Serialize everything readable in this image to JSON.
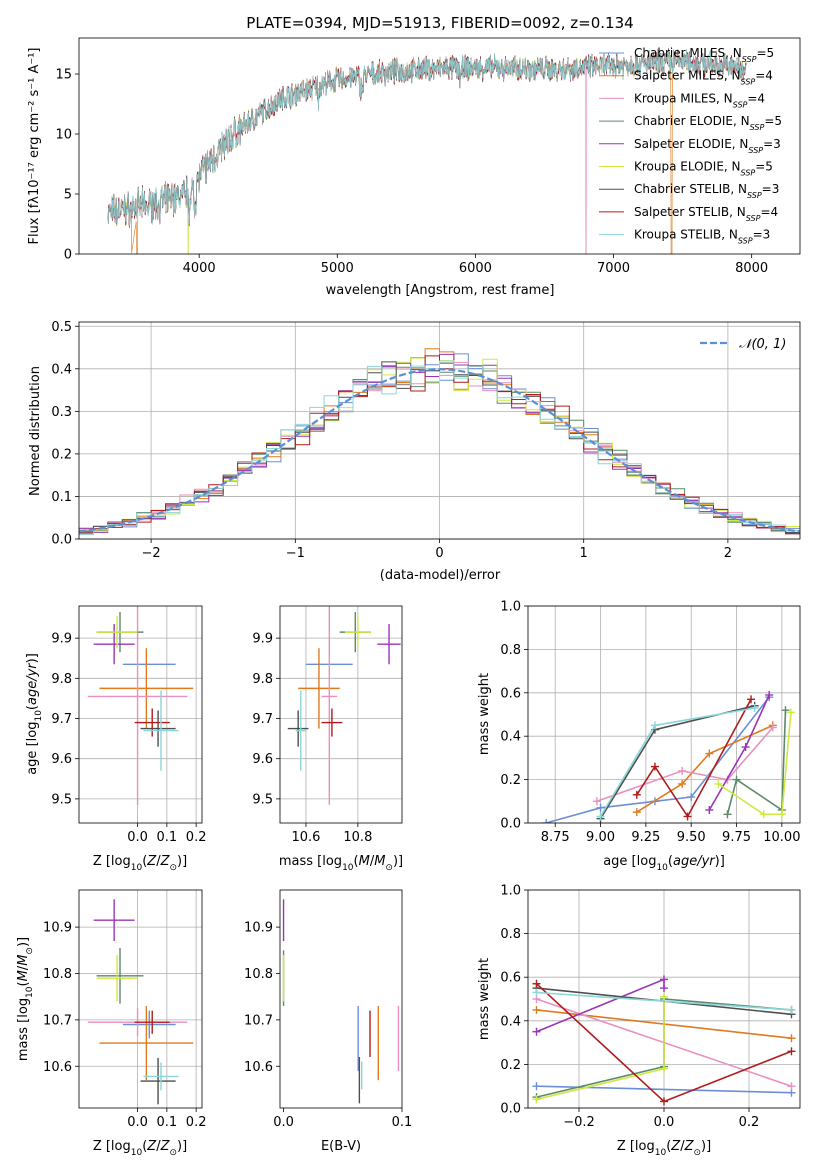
{
  "colors": {
    "Chabrier MILES": "#6b8fd6",
    "Salpeter MILES": "#df7a1e",
    "Kroupa MILES": "#ea8fbf",
    "Chabrier ELODIE": "#5b8a6a",
    "Salpeter ELODIE": "#9b35b5",
    "Kroupa ELODIE": "#cfe843",
    "Chabrier STELIB": "#4f4f4f",
    "Salpeter STELIB": "#b01c1c",
    "Kroupa STELIB": "#8ad6d9"
  },
  "chart_data": [
    {
      "id": "spectrum",
      "type": "line",
      "title": "PLATE=0394, MJD=51913, FIBERID=0092, z=0.134",
      "xlabel": "wavelength [Angstrom, rest frame]",
      "ylabel": "Flux [fλ10⁻¹⁷ erg cm⁻² s⁻¹ A⁻¹]",
      "xlim": [
        3130,
        8350
      ],
      "ylim": [
        0,
        18
      ],
      "xticks": [
        4000,
        5000,
        6000,
        7000,
        8000
      ],
      "yticks": [
        0,
        5,
        10,
        15
      ],
      "grid": false,
      "legend_position": "top-right",
      "legend": [
        "Chabrier MILES, N_SSP=5",
        "Salpeter MILES, N_SSP=4",
        "Kroupa MILES, N_SSP=4",
        "Chabrier ELODIE, N_SSP=5",
        "Salpeter ELODIE, N_SSP=3",
        "Kroupa ELODIE, N_SSP=5",
        "Chabrier STELIB, N_SSP=3",
        "Salpeter STELIB, N_SSP=4",
        "Kroupa STELIB, N_SSP=3"
      ],
      "continuum_anchors": {
        "x": [
          3350,
          3500,
          3700,
          3900,
          4100,
          4300,
          4600,
          5000,
          5400,
          5800,
          6200,
          6600,
          7000,
          7500,
          7950
        ],
        "y": [
          3.5,
          3.8,
          4.2,
          5.0,
          8.0,
          10.5,
          13.0,
          14.5,
          15.2,
          15.5,
          15.5,
          15.4,
          15.7,
          16.1,
          15.5
        ]
      },
      "dropouts": [
        {
          "series": "Salpeter MILES",
          "x": 3550
        },
        {
          "series": "Kroupa ELODIE",
          "x": 3920
        },
        {
          "series": "Kroupa MILES",
          "x": 6800
        },
        {
          "series": "Salpeter MILES",
          "x": 7420
        }
      ]
    },
    {
      "id": "residuals",
      "type": "histogram",
      "xlabel": "(data-model)/error",
      "ylabel": "Normed distribution",
      "xlim": [
        -2.5,
        2.5
      ],
      "ylim": [
        0,
        0.51
      ],
      "xticks": [
        -2,
        -1,
        0,
        1,
        2
      ],
      "yticks": [
        0.0,
        0.1,
        0.2,
        0.3,
        0.4,
        0.5
      ],
      "grid": true,
      "legend_position": "top-right",
      "reference_curve": {
        "name": "𝒩(0, 1)",
        "mean": 0,
        "sigma": 1,
        "color": "#5b8fd6"
      },
      "bin_width": 0.1
    },
    {
      "id": "z-age",
      "type": "errorbar",
      "xlabel": "Z [log10(Z/Z⊙)]",
      "ylabel": "age  [log10(age/yr)]",
      "xlim": [
        -0.2,
        0.22
      ],
      "ylim": [
        9.44,
        9.98
      ],
      "xticks": [
        0.0,
        0.1,
        0.2
      ],
      "yticks": [
        9.5,
        9.6,
        9.7,
        9.8,
        9.9
      ],
      "grid": true,
      "points": [
        {
          "s": "Chabrier MILES",
          "x": 0.04,
          "xe": 0.09,
          "y": 9.835,
          "ye": 0.0
        },
        {
          "s": "Salpeter MILES",
          "x": 0.03,
          "xe": 0.16,
          "y": 9.775,
          "ye": 0.1
        },
        {
          "s": "Kroupa MILES",
          "x": 0.0,
          "xe": 0.17,
          "y": 9.755,
          "ye": 0.27
        },
        {
          "s": "Chabrier ELODIE",
          "x": -0.06,
          "xe": 0.08,
          "y": 9.915,
          "ye": 0.05
        },
        {
          "s": "Salpeter ELODIE",
          "x": -0.08,
          "xe": 0.07,
          "y": 9.885,
          "ye": 0.05
        },
        {
          "s": "Kroupa ELODIE",
          "x": -0.07,
          "xe": 0.07,
          "y": 9.915,
          "ye": 0.04
        },
        {
          "s": "Chabrier STELIB",
          "x": 0.07,
          "xe": 0.06,
          "y": 9.675,
          "ye": 0.045
        },
        {
          "s": "Salpeter STELIB",
          "x": 0.05,
          "xe": 0.06,
          "y": 9.69,
          "ye": 0.035
        },
        {
          "s": "Kroupa STELIB",
          "x": 0.08,
          "xe": 0.06,
          "y": 9.67,
          "ye": 0.1
        }
      ]
    },
    {
      "id": "mass-age",
      "type": "errorbar",
      "xlabel": "mass [log10(M/M⊙)]",
      "ylabel": "",
      "xlim": [
        10.5,
        10.97
      ],
      "ylim": [
        9.44,
        9.98
      ],
      "xticks": [
        10.6,
        10.8
      ],
      "yticks": [
        9.5,
        9.6,
        9.7,
        9.8,
        9.9
      ],
      "grid": true,
      "points": [
        {
          "s": "Chabrier MILES",
          "x": 10.69,
          "xe": 0.09,
          "y": 9.835,
          "ye": 0.0
        },
        {
          "s": "Salpeter MILES",
          "x": 10.65,
          "xe": 0.08,
          "y": 9.775,
          "ye": 0.1
        },
        {
          "s": "Kroupa MILES",
          "x": 10.69,
          "xe": 0.03,
          "y": 9.755,
          "ye": 0.27
        },
        {
          "s": "Chabrier ELODIE",
          "x": 10.79,
          "xe": 0.06,
          "y": 9.915,
          "ye": 0.05
        },
        {
          "s": "Salpeter ELODIE",
          "x": 10.92,
          "xe": 0.045,
          "y": 9.885,
          "ye": 0.05
        },
        {
          "s": "Kroupa ELODIE",
          "x": 10.8,
          "xe": 0.05,
          "y": 9.915,
          "ye": 0.04
        },
        {
          "s": "Chabrier STELIB",
          "x": 10.57,
          "xe": 0.04,
          "y": 9.675,
          "ye": 0.045
        },
        {
          "s": "Salpeter STELIB",
          "x": 10.7,
          "xe": 0.04,
          "y": 9.69,
          "ye": 0.035
        },
        {
          "s": "Kroupa STELIB",
          "x": 10.58,
          "xe": 0.02,
          "y": 9.67,
          "ye": 0.1
        }
      ]
    },
    {
      "id": "age-weight",
      "type": "line",
      "xlabel": "age  [log10(age/yr)]",
      "ylabel": "mass weight",
      "xlim": [
        8.6,
        10.1
      ],
      "ylim": [
        0,
        1
      ],
      "xticks": [
        8.75,
        9.0,
        9.25,
        9.5,
        9.75,
        10.0
      ],
      "yticks": [
        0.0,
        0.2,
        0.4,
        0.6,
        0.8,
        1.0
      ],
      "grid": true,
      "series": [
        {
          "name": "Chabrier MILES",
          "x": [
            8.7,
            9.0,
            9.3,
            9.5,
            9.93
          ],
          "y": [
            0.0,
            0.07,
            0.1,
            0.12,
            0.58
          ]
        },
        {
          "name": "Salpeter MILES",
          "x": [
            9.2,
            9.45,
            9.6,
            9.95
          ],
          "y": [
            0.05,
            0.18,
            0.32,
            0.45
          ]
        },
        {
          "name": "Kroupa MILES",
          "x": [
            8.98,
            9.45,
            9.7,
            9.95
          ],
          "y": [
            0.1,
            0.24,
            0.2,
            0.44
          ]
        },
        {
          "name": "Chabrier ELODIE",
          "x": [
            9.7,
            9.75,
            10.0,
            10.02
          ],
          "y": [
            0.04,
            0.2,
            0.06,
            0.52
          ]
        },
        {
          "name": "Salpeter ELODIE",
          "x": [
            9.6,
            9.8,
            9.93
          ],
          "y": [
            0.06,
            0.35,
            0.59
          ]
        },
        {
          "name": "Kroupa ELODIE",
          "x": [
            9.65,
            9.9,
            10.0,
            10.05
          ],
          "y": [
            0.18,
            0.04,
            0.04,
            0.51
          ]
        },
        {
          "name": "Chabrier STELIB",
          "x": [
            9.0,
            9.3,
            9.85
          ],
          "y": [
            0.02,
            0.43,
            0.54
          ]
        },
        {
          "name": "Salpeter STELIB",
          "x": [
            9.2,
            9.3,
            9.48,
            9.83
          ],
          "y": [
            0.13,
            0.26,
            0.03,
            0.57
          ]
        },
        {
          "name": "Kroupa STELIB",
          "x": [
            9.0,
            9.3,
            9.85
          ],
          "y": [
            0.03,
            0.45,
            0.53
          ]
        }
      ]
    },
    {
      "id": "z-mass",
      "type": "errorbar",
      "xlabel": "Z [log10(Z/Z⊙)]",
      "ylabel": "mass [log10(M/M⊙)]",
      "xlim": [
        -0.2,
        0.22
      ],
      "ylim": [
        10.51,
        10.98
      ],
      "xticks": [
        0.0,
        0.1,
        0.2
      ],
      "yticks": [
        10.6,
        10.7,
        10.8,
        10.9
      ],
      "grid": true,
      "points": [
        {
          "s": "Chabrier MILES",
          "x": 0.04,
          "xe": 0.09,
          "y": 10.69,
          "ye": 0.03
        },
        {
          "s": "Salpeter MILES",
          "x": 0.03,
          "xe": 0.16,
          "y": 10.65,
          "ye": 0.08
        },
        {
          "s": "Kroupa MILES",
          "x": 0.0,
          "xe": 0.17,
          "y": 10.695,
          "ye": 0.03
        },
        {
          "s": "Chabrier ELODIE",
          "x": -0.06,
          "xe": 0.08,
          "y": 10.795,
          "ye": 0.06
        },
        {
          "s": "Salpeter ELODIE",
          "x": -0.08,
          "xe": 0.07,
          "y": 10.915,
          "ye": 0.045
        },
        {
          "s": "Kroupa ELODIE",
          "x": -0.07,
          "xe": 0.07,
          "y": 10.79,
          "ye": 0.05
        },
        {
          "s": "Chabrier STELIB",
          "x": 0.07,
          "xe": 0.06,
          "y": 10.568,
          "ye": 0.05
        },
        {
          "s": "Salpeter STELIB",
          "x": 0.05,
          "xe": 0.06,
          "y": 10.695,
          "ye": 0.025
        },
        {
          "s": "Kroupa STELIB",
          "x": 0.08,
          "xe": 0.06,
          "y": 10.578,
          "ye": 0.03
        }
      ]
    },
    {
      "id": "ebv-mass",
      "type": "errorbar",
      "xlabel": "E(B-V)",
      "ylabel": "",
      "xlim": [
        -0.003,
        0.1
      ],
      "ylim": [
        10.51,
        10.98
      ],
      "xticks": [
        0.0,
        0.1
      ],
      "yticks": [
        10.6,
        10.7,
        10.8,
        10.9
      ],
      "grid": false,
      "points": [
        {
          "s": "Chabrier MILES",
          "x": 0.063,
          "xe": 0,
          "y": 10.66,
          "ye": 0.07
        },
        {
          "s": "Salpeter MILES",
          "x": 0.08,
          "xe": 0,
          "y": 10.65,
          "ye": 0.08
        },
        {
          "s": "Kroupa MILES",
          "x": 0.097,
          "xe": 0,
          "y": 10.66,
          "ye": 0.07
        },
        {
          "s": "Chabrier ELODIE",
          "x": 0.0,
          "xe": 0,
          "y": 10.79,
          "ye": 0.06
        },
        {
          "s": "Salpeter ELODIE",
          "x": 0.0,
          "xe": 0,
          "y": 10.915,
          "ye": 0.045
        },
        {
          "s": "Kroupa ELODIE",
          "x": 0.0,
          "xe": 0,
          "y": 10.79,
          "ye": 0.05
        },
        {
          "s": "Chabrier STELIB",
          "x": 0.064,
          "xe": 0,
          "y": 10.57,
          "ye": 0.05
        },
        {
          "s": "Salpeter STELIB",
          "x": 0.073,
          "xe": 0,
          "y": 10.67,
          "ye": 0.05
        },
        {
          "s": "Kroupa STELIB",
          "x": 0.066,
          "xe": 0,
          "y": 10.58,
          "ye": 0.03
        }
      ]
    },
    {
      "id": "z-weight",
      "type": "line",
      "xlabel": "Z [log10(Z/Z⊙)]",
      "ylabel": "mass weight",
      "xlim": [
        -0.32,
        0.32
      ],
      "ylim": [
        0,
        1
      ],
      "xticks": [
        -0.2,
        0.0,
        0.2
      ],
      "yticks": [
        0.0,
        0.2,
        0.4,
        0.6,
        0.8,
        1.0
      ],
      "grid": true,
      "series": [
        {
          "name": "Chabrier MILES",
          "x": [
            -0.3,
            0.3
          ],
          "y": [
            0.1,
            0.07
          ]
        },
        {
          "name": "Salpeter MILES",
          "x": [
            -0.3,
            0.3
          ],
          "y": [
            0.45,
            0.32
          ]
        },
        {
          "name": "Kroupa MILES",
          "x": [
            -0.3,
            0.3
          ],
          "y": [
            0.5,
            0.1
          ]
        },
        {
          "name": "Chabrier ELODIE",
          "x": [
            -0.3,
            0.0,
            0.0,
            0.3
          ],
          "y": [
            0.05,
            0.19,
            0.5,
            0.45
          ]
        },
        {
          "name": "Salpeter ELODIE",
          "x": [
            -0.3,
            0.0,
            0.0
          ],
          "y": [
            0.35,
            0.59,
            0.55
          ]
        },
        {
          "name": "Kroupa ELODIE",
          "x": [
            -0.3,
            0.0,
            0.0
          ],
          "y": [
            0.04,
            0.18,
            0.51
          ]
        },
        {
          "name": "Chabrier STELIB",
          "x": [
            -0.3,
            0.3
          ],
          "y": [
            0.55,
            0.43
          ]
        },
        {
          "name": "Salpeter STELIB",
          "x": [
            -0.3,
            0.0,
            0.3
          ],
          "y": [
            0.57,
            0.03,
            0.26
          ]
        },
        {
          "name": "Kroupa STELIB",
          "x": [
            -0.3,
            0.3
          ],
          "y": [
            0.53,
            0.45
          ]
        }
      ]
    }
  ]
}
